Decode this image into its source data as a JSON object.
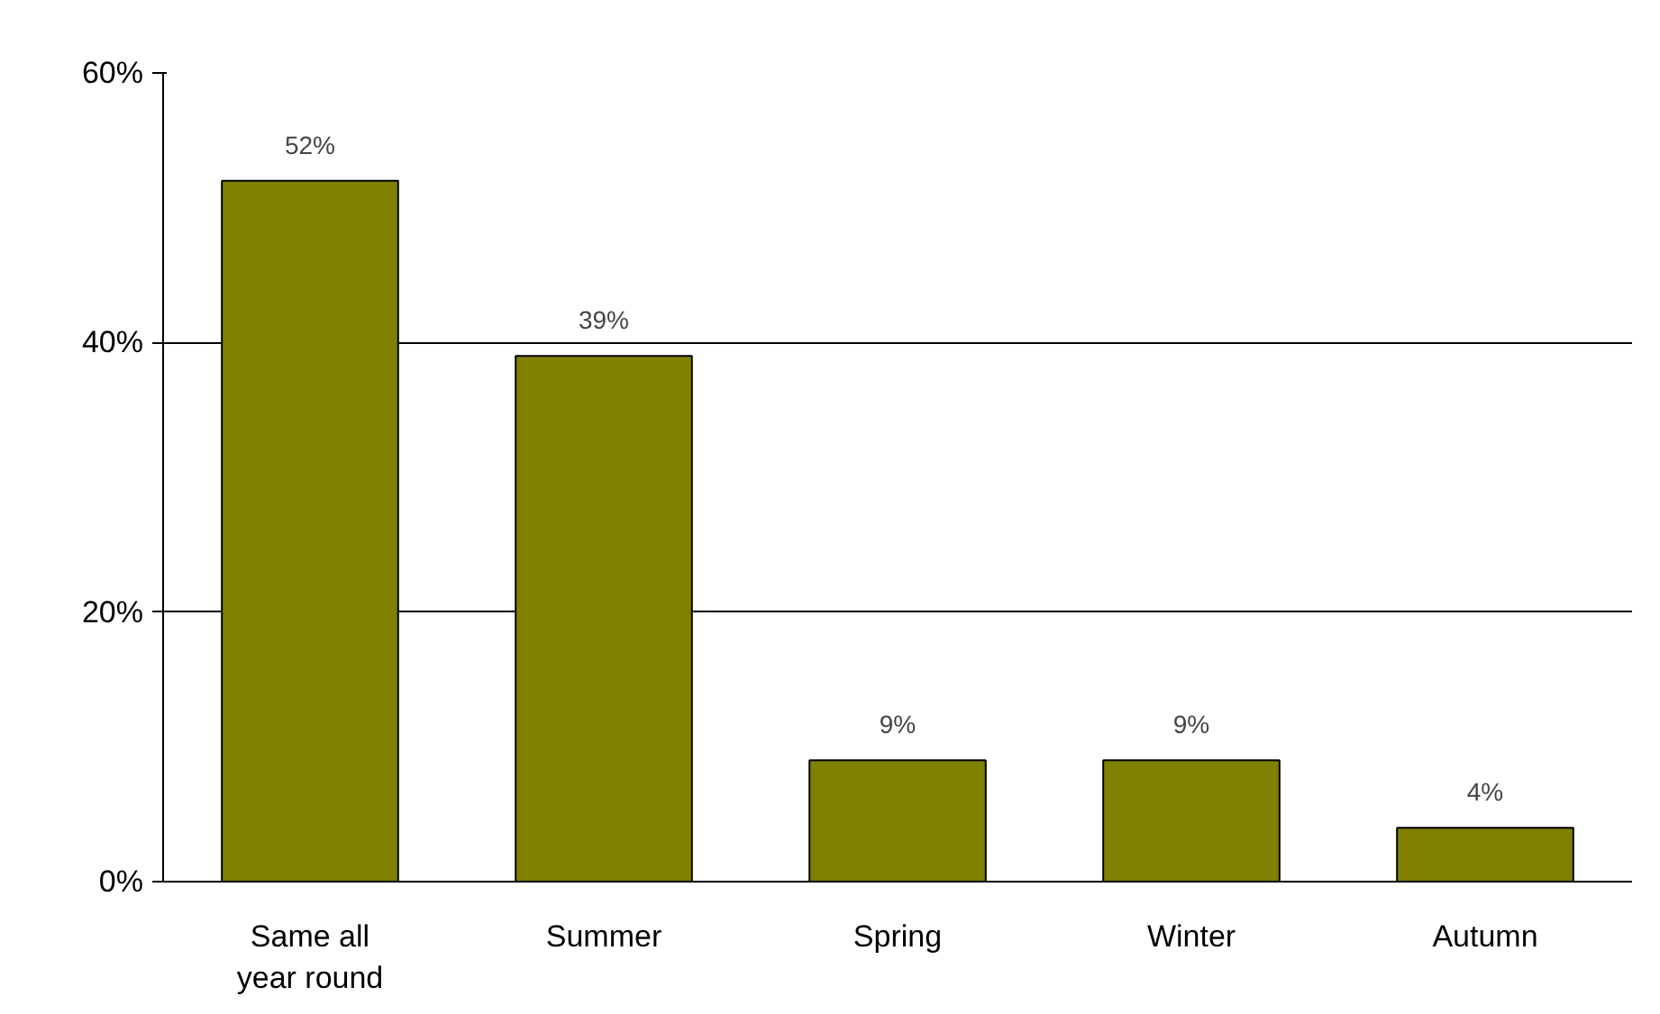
{
  "chart_data": {
    "type": "bar",
    "categories": [
      "Same all year round",
      "Summer",
      "Spring",
      "Winter",
      "Autumn"
    ],
    "values": [
      52,
      39,
      9,
      9,
      4
    ],
    "color": "#808000",
    "value_labels": [
      "52%",
      "39%",
      "9%",
      "9%",
      "4%"
    ],
    "ylim": [
      0,
      60
    ],
    "yticks": [
      {
        "value": 0,
        "label": "0%"
      },
      {
        "value": 20,
        "label": "20%"
      },
      {
        "value": 40,
        "label": "40%"
      },
      {
        "value": 60,
        "label": "60%"
      }
    ],
    "grid": "y"
  }
}
